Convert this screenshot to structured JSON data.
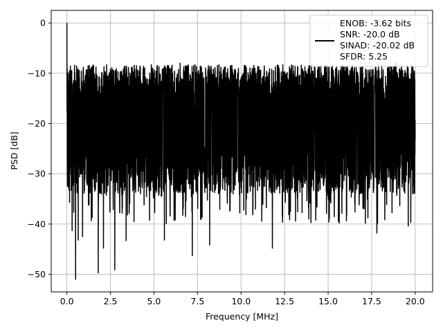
{
  "chart_data": {
    "type": "line",
    "xlabel": "Frequency [MHz]",
    "ylabel": "PSD [dB]",
    "xlim": [
      -0.9,
      21.0
    ],
    "ylim": [
      -53.5,
      2.5
    ],
    "xticks": [
      0.0,
      2.5,
      5.0,
      7.5,
      10.0,
      12.5,
      15.0,
      17.5,
      20.0
    ],
    "xtick_labels": [
      "0.0",
      "2.5",
      "5.0",
      "7.5",
      "10.0",
      "12.5",
      "15.0",
      "17.5",
      "20.0"
    ],
    "yticks": [
      0,
      -10,
      -20,
      -30,
      -40,
      -50
    ],
    "ytick_labels": [
      "0",
      "−10",
      "−20",
      "−30",
      "−40",
      "−50"
    ],
    "grid": true,
    "legend_position": "top-right",
    "legend": [
      "ENOB: -3.62 bits",
      "SNR: -20.0 dB",
      "SINAD: -20.02 dB",
      "SFDR: 5.25"
    ],
    "series": [
      {
        "color": "#000000",
        "x_range": [
          0.0,
          20.0
        ],
        "envelope_upper_db": -12.5,
        "envelope_lower_db": -30.0,
        "peak_x": 0.0,
        "peak_y": 0.0,
        "notable_points": [
          {
            "x": 0.05,
            "y": -21.5
          },
          {
            "x": 0.15,
            "y": -9.5
          },
          {
            "x": 0.3,
            "y": -41.3
          },
          {
            "x": 0.5,
            "y": -51.0
          },
          {
            "x": 0.65,
            "y": -43.2
          },
          {
            "x": 0.9,
            "y": -42.5
          },
          {
            "x": 1.45,
            "y": -38.7
          },
          {
            "x": 1.8,
            "y": -49.7
          },
          {
            "x": 2.1,
            "y": -44.8
          },
          {
            "x": 2.75,
            "y": -49.1
          },
          {
            "x": 3.4,
            "y": -43.3
          },
          {
            "x": 5.6,
            "y": -43.2
          },
          {
            "x": 6.5,
            "y": -8.0
          },
          {
            "x": 7.2,
            "y": -46.3
          },
          {
            "x": 8.2,
            "y": -44.2
          },
          {
            "x": 11.8,
            "y": -44.8
          },
          {
            "x": 14.8,
            "y": -8.5
          },
          {
            "x": 17.8,
            "y": -41.8
          },
          {
            "x": 18.9,
            "y": -8.0
          },
          {
            "x": 19.6,
            "y": -40.4
          },
          {
            "x": 20.0,
            "y": -23.0
          }
        ]
      }
    ]
  }
}
